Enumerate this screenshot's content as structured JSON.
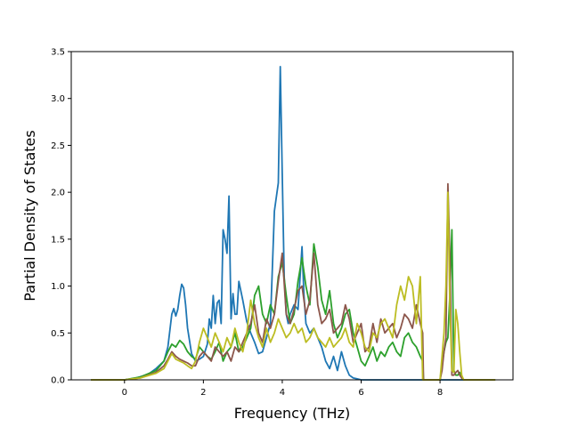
{
  "chart_data": {
    "type": "line",
    "title": "",
    "xlabel": "Frequency (THz)",
    "ylabel": "Partial Density of States",
    "xlim": [
      -1.35,
      9.85
    ],
    "ylim": [
      0,
      3.5
    ],
    "xticks": [
      0,
      2,
      4,
      6,
      8
    ],
    "yticks": [
      0.0,
      0.5,
      1.0,
      1.5,
      2.0,
      2.5,
      3.0,
      3.5
    ],
    "xtick_labels": [
      "0",
      "2",
      "4",
      "6",
      "8"
    ],
    "ytick_labels": [
      "0.0",
      "0.5",
      "1.0",
      "1.5",
      "2.0",
      "2.5",
      "3.0",
      "3.5"
    ],
    "grid": false,
    "legend": "none",
    "series": [
      {
        "color": "#1f77b4",
        "x": [
          -0.85,
          0.0,
          0.3,
          0.6,
          0.8,
          1.0,
          1.1,
          1.2,
          1.25,
          1.3,
          1.35,
          1.4,
          1.45,
          1.5,
          1.55,
          1.6,
          1.7,
          1.8,
          1.9,
          2.0,
          2.1,
          2.15,
          2.2,
          2.25,
          2.3,
          2.35,
          2.4,
          2.45,
          2.5,
          2.55,
          2.6,
          2.65,
          2.7,
          2.75,
          2.8,
          2.85,
          2.9,
          3.0,
          3.1,
          3.2,
          3.3,
          3.4,
          3.5,
          3.6,
          3.7,
          3.8,
          3.85,
          3.9,
          3.95,
          4.0,
          4.05,
          4.1,
          4.15,
          4.2,
          4.3,
          4.4,
          4.5,
          4.55,
          4.6,
          4.7,
          4.8,
          4.9,
          5.0,
          5.1,
          5.2,
          5.3,
          5.4,
          5.5,
          5.6,
          5.7,
          5.8,
          5.9,
          6.0,
          6.1,
          6.3,
          6.6,
          7.0,
          7.5,
          8.0,
          8.5,
          9.0,
          9.4
        ],
        "y": [
          0.0,
          0.0,
          0.02,
          0.06,
          0.12,
          0.2,
          0.35,
          0.7,
          0.76,
          0.68,
          0.75,
          0.9,
          1.02,
          0.98,
          0.8,
          0.55,
          0.28,
          0.2,
          0.22,
          0.25,
          0.38,
          0.65,
          0.55,
          0.9,
          0.6,
          0.82,
          0.85,
          0.6,
          1.6,
          1.5,
          1.35,
          1.96,
          0.65,
          0.92,
          0.7,
          0.7,
          1.05,
          0.85,
          0.62,
          0.5,
          0.4,
          0.28,
          0.3,
          0.45,
          0.6,
          1.8,
          1.95,
          2.1,
          3.34,
          2.2,
          1.1,
          0.7,
          0.6,
          0.7,
          0.8,
          0.75,
          1.42,
          0.9,
          0.6,
          0.5,
          0.55,
          0.45,
          0.35,
          0.2,
          0.12,
          0.25,
          0.1,
          0.3,
          0.15,
          0.05,
          0.02,
          0.01,
          0.0,
          0.0,
          0.0,
          0.0,
          0.0,
          0.0,
          0.0,
          0.0,
          0.0,
          0.0
        ]
      },
      {
        "color": "#2ca02c",
        "x": [
          -0.85,
          0.0,
          0.4,
          0.8,
          1.0,
          1.1,
          1.2,
          1.3,
          1.4,
          1.5,
          1.6,
          1.7,
          1.8,
          1.9,
          2.0,
          2.1,
          2.2,
          2.3,
          2.4,
          2.5,
          2.6,
          2.7,
          2.8,
          2.9,
          3.0,
          3.1,
          3.2,
          3.3,
          3.4,
          3.5,
          3.6,
          3.7,
          3.8,
          3.9,
          4.0,
          4.1,
          4.2,
          4.3,
          4.4,
          4.5,
          4.6,
          4.7,
          4.8,
          4.9,
          5.0,
          5.1,
          5.2,
          5.3,
          5.4,
          5.5,
          5.6,
          5.7,
          5.8,
          5.9,
          6.0,
          6.1,
          6.2,
          6.3,
          6.4,
          6.5,
          6.6,
          6.7,
          6.8,
          6.9,
          7.0,
          7.1,
          7.2,
          7.3,
          7.4,
          7.5,
          7.56,
          7.58,
          7.6,
          7.8,
          8.0,
          8.1,
          8.15,
          8.2,
          8.25,
          8.3,
          8.35,
          8.4,
          8.45,
          8.5,
          8.55,
          8.6,
          9.4
        ],
        "y": [
          0.0,
          0.0,
          0.03,
          0.1,
          0.2,
          0.3,
          0.38,
          0.35,
          0.42,
          0.38,
          0.3,
          0.25,
          0.22,
          0.35,
          0.3,
          0.25,
          0.22,
          0.3,
          0.4,
          0.2,
          0.3,
          0.35,
          0.5,
          0.3,
          0.35,
          0.45,
          0.55,
          0.9,
          1.0,
          0.7,
          0.6,
          0.8,
          0.7,
          1.1,
          1.25,
          0.9,
          0.6,
          0.7,
          1.05,
          1.3,
          1.0,
          0.8,
          1.45,
          1.2,
          0.85,
          0.7,
          0.95,
          0.6,
          0.45,
          0.55,
          0.7,
          0.75,
          0.5,
          0.35,
          0.2,
          0.15,
          0.25,
          0.35,
          0.2,
          0.3,
          0.25,
          0.35,
          0.4,
          0.3,
          0.25,
          0.45,
          0.5,
          0.4,
          0.35,
          0.25,
          0.2,
          0.0,
          0.0,
          0.0,
          0.0,
          0.3,
          0.4,
          0.45,
          0.9,
          1.6,
          0.1,
          0.05,
          0.05,
          0.08,
          0.02,
          0.0,
          0.0
        ]
      },
      {
        "color": "#8c564b",
        "x": [
          -0.85,
          0.0,
          0.4,
          0.8,
          1.0,
          1.1,
          1.2,
          1.3,
          1.4,
          1.5,
          1.6,
          1.7,
          1.8,
          1.9,
          2.0,
          2.1,
          2.2,
          2.3,
          2.4,
          2.5,
          2.6,
          2.7,
          2.8,
          2.9,
          3.0,
          3.1,
          3.2,
          3.3,
          3.4,
          3.5,
          3.6,
          3.7,
          3.8,
          3.9,
          4.0,
          4.1,
          4.2,
          4.3,
          4.4,
          4.5,
          4.6,
          4.7,
          4.8,
          4.9,
          5.0,
          5.1,
          5.2,
          5.3,
          5.4,
          5.5,
          5.6,
          5.7,
          5.8,
          5.9,
          6.0,
          6.1,
          6.2,
          6.3,
          6.4,
          6.5,
          6.6,
          6.7,
          6.8,
          6.9,
          7.0,
          7.1,
          7.2,
          7.3,
          7.4,
          7.5,
          7.56,
          7.58,
          7.6,
          7.8,
          8.0,
          8.05,
          8.1,
          8.15,
          8.2,
          8.25,
          8.3,
          8.35,
          8.4,
          8.45,
          8.5,
          8.55,
          8.6,
          9.4
        ],
        "y": [
          0.0,
          0.0,
          0.02,
          0.08,
          0.15,
          0.22,
          0.3,
          0.25,
          0.22,
          0.2,
          0.18,
          0.15,
          0.15,
          0.25,
          0.3,
          0.25,
          0.2,
          0.35,
          0.3,
          0.25,
          0.3,
          0.2,
          0.35,
          0.3,
          0.4,
          0.5,
          0.6,
          0.8,
          0.5,
          0.4,
          0.65,
          0.55,
          0.7,
          1.05,
          1.35,
          0.7,
          0.6,
          0.75,
          0.95,
          1.0,
          0.7,
          0.85,
          1.35,
          0.8,
          0.6,
          0.65,
          0.75,
          0.5,
          0.55,
          0.6,
          0.8,
          0.65,
          0.4,
          0.5,
          0.6,
          0.3,
          0.35,
          0.6,
          0.4,
          0.65,
          0.5,
          0.55,
          0.6,
          0.45,
          0.55,
          0.7,
          0.65,
          0.55,
          0.8,
          0.6,
          0.5,
          0.0,
          0.0,
          0.0,
          0.0,
          0.1,
          0.3,
          0.45,
          2.09,
          1.3,
          0.05,
          0.05,
          0.08,
          0.1,
          0.05,
          0.02,
          0.0,
          0.0
        ]
      },
      {
        "color": "#bcbd22",
        "x": [
          -0.85,
          0.0,
          0.4,
          0.8,
          1.0,
          1.1,
          1.2,
          1.3,
          1.4,
          1.5,
          1.6,
          1.7,
          1.8,
          1.9,
          2.0,
          2.1,
          2.2,
          2.3,
          2.4,
          2.5,
          2.6,
          2.7,
          2.8,
          2.9,
          3.0,
          3.1,
          3.2,
          3.3,
          3.4,
          3.5,
          3.6,
          3.7,
          3.8,
          3.9,
          4.0,
          4.1,
          4.2,
          4.3,
          4.4,
          4.5,
          4.6,
          4.7,
          4.8,
          4.9,
          5.0,
          5.1,
          5.2,
          5.3,
          5.4,
          5.5,
          5.6,
          5.7,
          5.8,
          5.9,
          6.0,
          6.1,
          6.2,
          6.3,
          6.4,
          6.5,
          6.6,
          6.7,
          6.8,
          6.9,
          7.0,
          7.1,
          7.2,
          7.3,
          7.4,
          7.5,
          7.56,
          7.58,
          7.6,
          7.8,
          8.0,
          8.1,
          8.15,
          8.2,
          8.25,
          8.3,
          8.35,
          8.4,
          8.45,
          8.5,
          8.55,
          8.6,
          9.4
        ],
        "y": [
          0.0,
          0.0,
          0.02,
          0.07,
          0.12,
          0.2,
          0.28,
          0.22,
          0.2,
          0.18,
          0.15,
          0.12,
          0.2,
          0.4,
          0.55,
          0.45,
          0.35,
          0.5,
          0.4,
          0.3,
          0.45,
          0.35,
          0.55,
          0.4,
          0.3,
          0.5,
          0.85,
          0.6,
          0.45,
          0.35,
          0.55,
          0.4,
          0.5,
          0.65,
          0.55,
          0.45,
          0.5,
          0.6,
          0.5,
          0.55,
          0.4,
          0.45,
          0.55,
          0.45,
          0.4,
          0.35,
          0.45,
          0.35,
          0.4,
          0.45,
          0.55,
          0.4,
          0.35,
          0.6,
          0.5,
          0.35,
          0.3,
          0.5,
          0.45,
          0.6,
          0.65,
          0.55,
          0.45,
          0.8,
          1.0,
          0.85,
          1.1,
          1.0,
          0.6,
          1.1,
          0.0,
          0.0,
          0.0,
          0.0,
          0.0,
          0.5,
          1.0,
          2.0,
          0.8,
          0.1,
          0.08,
          0.75,
          0.6,
          0.3,
          0.05,
          0.0,
          0.0
        ]
      }
    ]
  }
}
